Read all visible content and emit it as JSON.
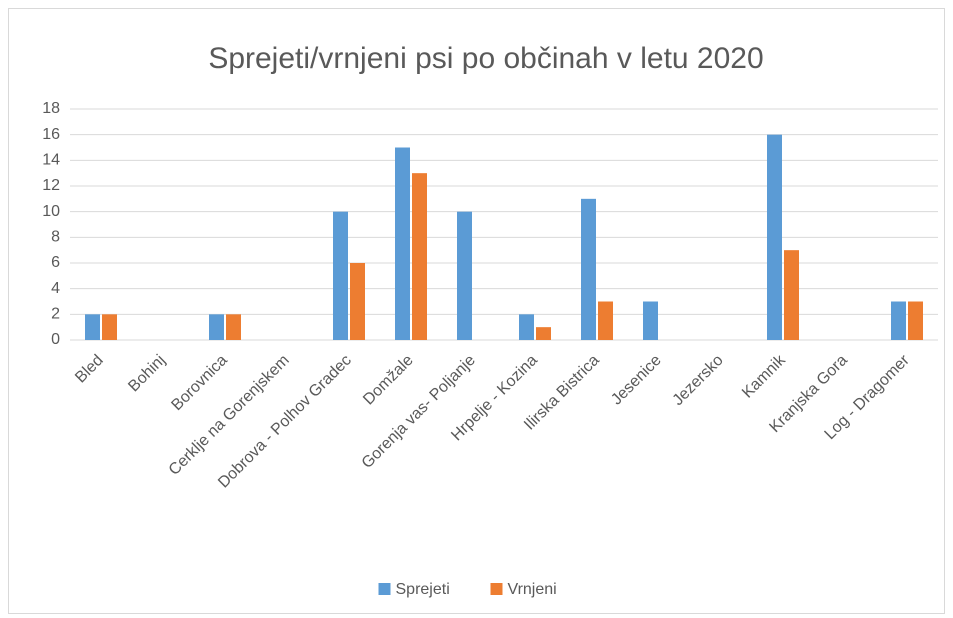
{
  "chart_data": {
    "type": "bar",
    "title": "Sprejeti/vrnjeni psi po občinah v letu 2020",
    "categories": [
      "Bled",
      "Bohinj",
      "Borovnica",
      "Cerklje na Gorenjskem",
      "Dobrova - Polhov Gradec",
      "Domžale",
      "Gorenja vas- Poljanje",
      "Hrpelje - Kozina",
      "Ilirska Bistrica",
      "Jesenice",
      "Jezersko",
      "Kamnik",
      "Kranjska Gora",
      "Log - Dragomer"
    ],
    "series": [
      {
        "name": "Sprejeti",
        "color": "#5b9bd5",
        "values": [
          2,
          0,
          2,
          0,
          10,
          15,
          10,
          2,
          11,
          3,
          0,
          16,
          0,
          3
        ]
      },
      {
        "name": "Vrnjeni",
        "color": "#ed7d31",
        "values": [
          2,
          0,
          2,
          0,
          6,
          13,
          0,
          1,
          3,
          0,
          0,
          7,
          0,
          3
        ]
      }
    ],
    "ylim": [
      0,
      18
    ],
    "yticks": [
      0,
      2,
      4,
      6,
      8,
      10,
      12,
      14,
      16,
      18
    ],
    "grid": true,
    "legend": "bottom"
  }
}
